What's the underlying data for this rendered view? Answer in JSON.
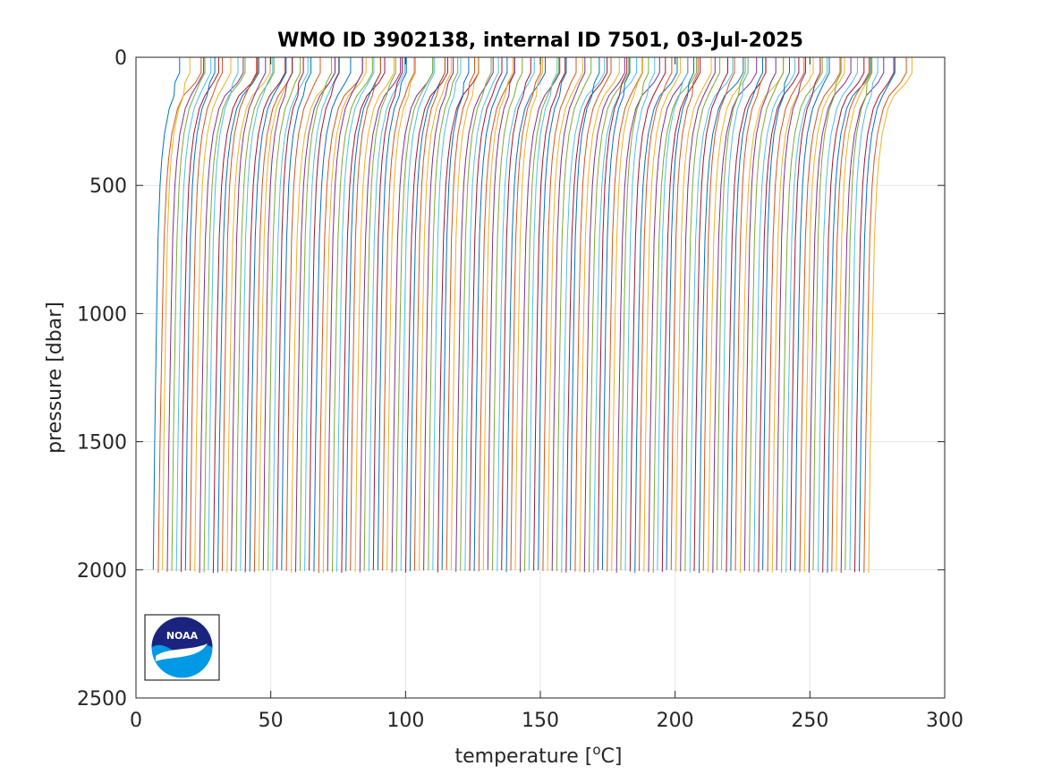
{
  "chart_data": {
    "type": "line",
    "title": "WMO ID 3902138, internal ID 7501, 03-Jul-2025",
    "xlabel_text": "temperature [",
    "xlabel_super": "o",
    "xlabel_suffix": "C]",
    "ylabel": "pressure [dbar]",
    "xlim": [
      0,
      300
    ],
    "ylim": [
      0,
      2500
    ],
    "y_reversed": true,
    "grid": true,
    "x_ticks": [
      "0",
      "50",
      "100",
      "150",
      "200",
      "250",
      "300"
    ],
    "y_ticks": [
      "0",
      "500",
      "1000",
      "1500",
      "2000",
      "2500"
    ],
    "series_description": "Profiles offset horizontally: each successive profile shifted ~1.7 °C; about 157 profiles from x≈6 to x≈272 at 2000 dbar",
    "profile_count": 157,
    "first_deep_offset": 6.5,
    "offset_step": 1.7,
    "colors": [
      "#0072BD",
      "#D95319",
      "#EDB120",
      "#7E2F8E",
      "#77AC30",
      "#4DBEEE",
      "#A2142F"
    ],
    "logo": "NOAA"
  }
}
